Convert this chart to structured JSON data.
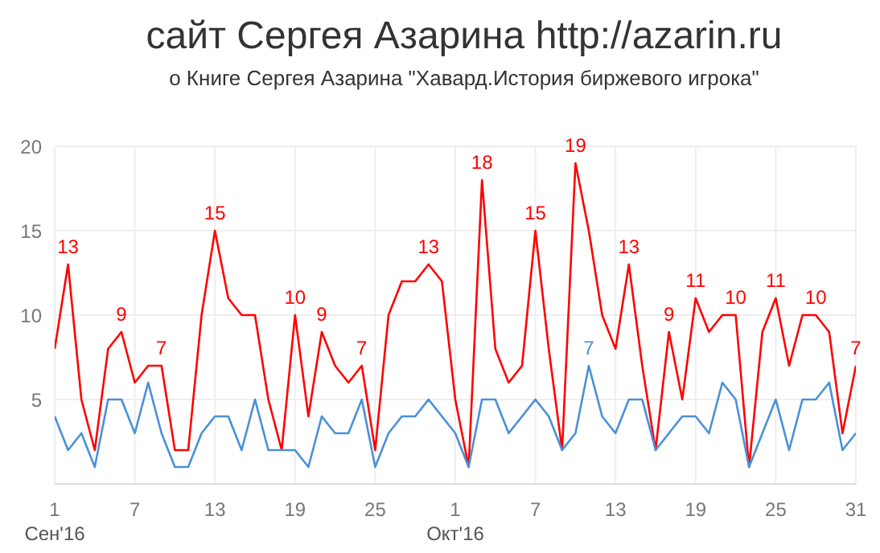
{
  "chart_data": {
    "type": "line",
    "title": "сайт Сергея Азарина http://azarin.ru",
    "subtitle": "о Книге Сергея Азарина \"Хавард.История биржевого игрока\"",
    "x": [
      "2016-09-01",
      "2016-09-02",
      "2016-09-03",
      "2016-09-04",
      "2016-09-05",
      "2016-09-06",
      "2016-09-07",
      "2016-09-08",
      "2016-09-09",
      "2016-09-10",
      "2016-09-11",
      "2016-09-12",
      "2016-09-13",
      "2016-09-14",
      "2016-09-15",
      "2016-09-16",
      "2016-09-17",
      "2016-09-18",
      "2016-09-19",
      "2016-09-20",
      "2016-09-21",
      "2016-09-22",
      "2016-09-23",
      "2016-09-24",
      "2016-09-25",
      "2016-09-26",
      "2016-09-27",
      "2016-09-28",
      "2016-09-29",
      "2016-09-30",
      "2016-10-01",
      "2016-10-02",
      "2016-10-03",
      "2016-10-04",
      "2016-10-05",
      "2016-10-06",
      "2016-10-07",
      "2016-10-08",
      "2016-10-09",
      "2016-10-10",
      "2016-10-11",
      "2016-10-12",
      "2016-10-13",
      "2016-10-14",
      "2016-10-15",
      "2016-10-16",
      "2016-10-17",
      "2016-10-18",
      "2016-10-19",
      "2016-10-20",
      "2016-10-21",
      "2016-10-22",
      "2016-10-23",
      "2016-10-24",
      "2016-10-25",
      "2016-10-26",
      "2016-10-27",
      "2016-10-28",
      "2016-10-29",
      "2016-10-30",
      "2016-10-31"
    ],
    "series": [
      {
        "color": "#ff0000",
        "values": [
          8,
          13,
          5,
          2,
          8,
          9,
          6,
          7,
          7,
          2,
          2,
          10,
          15,
          11,
          10,
          10,
          5,
          2,
          10,
          4,
          9,
          7,
          6,
          7,
          2,
          10,
          12,
          12,
          13,
          12,
          5,
          1,
          18,
          8,
          6,
          7,
          15,
          8,
          2,
          19,
          15,
          10,
          8,
          13,
          7,
          2,
          9,
          5,
          11,
          9,
          10,
          10,
          1,
          9,
          11,
          7,
          10,
          10,
          9,
          3,
          7
        ],
        "value_labels": [
          null,
          "13",
          null,
          null,
          null,
          "9",
          null,
          null,
          "7",
          null,
          null,
          null,
          "15",
          null,
          null,
          null,
          null,
          null,
          "10",
          null,
          "9",
          null,
          null,
          "7",
          null,
          null,
          null,
          null,
          "13",
          null,
          null,
          null,
          "18",
          null,
          null,
          null,
          "15",
          null,
          null,
          "19",
          null,
          null,
          null,
          "13",
          null,
          null,
          "9",
          null,
          "11",
          null,
          null,
          "10",
          null,
          null,
          "11",
          null,
          null,
          "10",
          null,
          null,
          "7"
        ]
      },
      {
        "color": "#4a90d9",
        "values": [
          4,
          2,
          3,
          1,
          5,
          5,
          3,
          6,
          3,
          1,
          1,
          3,
          4,
          4,
          2,
          5,
          2,
          2,
          2,
          1,
          4,
          3,
          3,
          5,
          1,
          3,
          4,
          4,
          5,
          4,
          3,
          1,
          5,
          5,
          3,
          4,
          5,
          4,
          2,
          3,
          7,
          4,
          3,
          5,
          5,
          2,
          3,
          4,
          4,
          3,
          6,
          5,
          1,
          3,
          5,
          2,
          5,
          5,
          6,
          2,
          3
        ],
        "value_labels": [
          null,
          null,
          null,
          null,
          null,
          null,
          null,
          null,
          null,
          null,
          null,
          null,
          null,
          null,
          null,
          null,
          null,
          null,
          null,
          null,
          null,
          null,
          null,
          null,
          null,
          null,
          null,
          null,
          null,
          null,
          null,
          null,
          null,
          null,
          null,
          null,
          null,
          null,
          null,
          null,
          "7",
          null,
          null,
          null,
          null,
          null,
          null,
          null,
          null,
          null,
          null,
          null,
          null,
          null,
          null,
          null,
          null,
          null,
          null,
          null,
          null
        ]
      }
    ],
    "xlim": [
      "2016-09-01",
      "2016-10-31"
    ],
    "xticks": [
      {
        "value": "2016-09-01",
        "label": "1\nСен'16"
      },
      {
        "value": "2016-09-07",
        "label": "7"
      },
      {
        "value": "2016-09-13",
        "label": "13"
      },
      {
        "value": "2016-09-19",
        "label": "19"
      },
      {
        "value": "2016-09-25",
        "label": "25"
      },
      {
        "value": "2016-10-01",
        "label": "1\nОкт'16"
      },
      {
        "value": "2016-10-07",
        "label": "7"
      },
      {
        "value": "2016-10-13",
        "label": "13"
      },
      {
        "value": "2016-10-19",
        "label": "19"
      },
      {
        "value": "2016-10-25",
        "label": "25"
      },
      {
        "value": "2016-10-31",
        "label": "31"
      }
    ],
    "ylim": [
      0,
      20
    ],
    "yticks": [
      {
        "value": 0,
        "label": null
      },
      5,
      10,
      15,
      20
    ],
    "grid": true,
    "marker": "none",
    "line_style": "solid",
    "legend": false
  }
}
